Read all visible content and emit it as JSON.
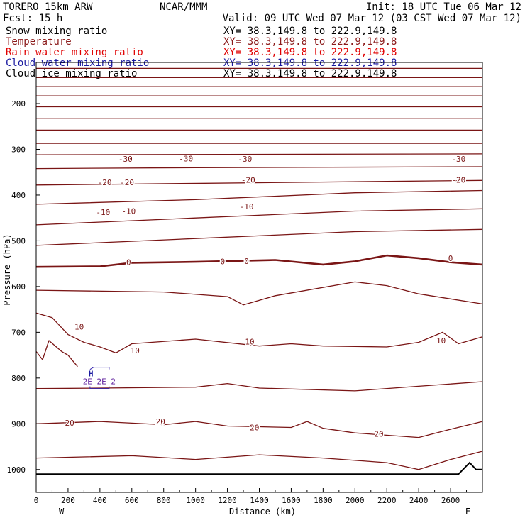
{
  "header": {
    "model_line": "TORERO  15km ARW",
    "forecast_line": "Fcst:   15 h",
    "org": "NCAR/MMM",
    "init": "Init: 18 UTC Tue 06 Mar 12",
    "valid": "Valid: 09 UTC Wed 07 Mar 12 (03 CST Wed 07 Mar 12)"
  },
  "fields": [
    {
      "name": "Snow mixing ratio",
      "xy": "XY=  38.3,149.8 to 222.9,149.8",
      "color": "#000000"
    },
    {
      "name": "Temperature",
      "xy": "XY=  38.3,149.8 to 222.9,149.8",
      "color": "#8b1a1a"
    },
    {
      "name": "Rain water mixing ratio",
      "xy": "XY=  38.3,149.8 to 222.9,149.8",
      "color": "#e00000"
    },
    {
      "name": "Cloud water mixing ratio",
      "xy": "XY=  38.3,149.8 to 222.9,149.8",
      "color": "#1a1aa0"
    },
    {
      "name": "Cloud ice mixing ratio",
      "xy": "XY=  38.3,149.8 to 222.9,149.8",
      "color": "#000000"
    }
  ],
  "chart_data": {
    "type": "line",
    "xlabel": "Distance (km)",
    "ylabel": "Pressure (hPa)",
    "xlim": [
      0,
      2800
    ],
    "ylim": [
      1050,
      110
    ],
    "x_ticks": [
      0,
      200,
      400,
      600,
      800,
      1000,
      1200,
      1400,
      1600,
      1800,
      2000,
      2200,
      2400,
      2600
    ],
    "y_ticks": [
      200,
      300,
      400,
      500,
      600,
      700,
      800,
      900,
      1000
    ],
    "x_end_labels": {
      "left": "W",
      "right": "E"
    },
    "isotherm_color": "#7a1515",
    "isotherms": [
      {
        "points": [
          [
            0,
            123
          ],
          [
            2800,
            123
          ]
        ]
      },
      {
        "points": [
          [
            0,
            143
          ],
          [
            2800,
            143
          ]
        ]
      },
      {
        "points": [
          [
            0,
            163
          ],
          [
            2800,
            163
          ]
        ]
      },
      {
        "points": [
          [
            0,
            183
          ],
          [
            2800,
            183
          ]
        ]
      },
      {
        "points": [
          [
            0,
            207
          ],
          [
            2800,
            207
          ]
        ]
      },
      {
        "points": [
          [
            0,
            232
          ],
          [
            2800,
            232
          ]
        ]
      },
      {
        "points": [
          [
            0,
            258
          ],
          [
            2800,
            258
          ]
        ]
      },
      {
        "points": [
          [
            0,
            287
          ],
          [
            2800,
            287
          ]
        ]
      },
      {
        "points": [
          [
            0,
            312
          ],
          [
            2800,
            310
          ]
        ]
      },
      {
        "points": [
          [
            0,
            342
          ],
          [
            1000,
            340
          ],
          [
            2800,
            338
          ]
        ]
      },
      {
        "points": [
          [
            0,
            378
          ],
          [
            2800,
            368
          ]
        ]
      },
      {
        "points": [
          [
            0,
            420
          ],
          [
            1000,
            410
          ],
          [
            2000,
            395
          ],
          [
            2800,
            390
          ]
        ]
      },
      {
        "points": [
          [
            0,
            465
          ],
          [
            1000,
            450
          ],
          [
            2000,
            435
          ],
          [
            2800,
            430
          ]
        ]
      },
      {
        "points": [
          [
            0,
            510
          ],
          [
            1000,
            495
          ],
          [
            2000,
            480
          ],
          [
            2800,
            475
          ]
        ]
      },
      {
        "points": [
          [
            0,
            557
          ],
          [
            400,
            556
          ],
          [
            600,
            548
          ],
          [
            1000,
            546
          ],
          [
            1500,
            542
          ],
          [
            1800,
            552
          ],
          [
            2000,
            545
          ],
          [
            2200,
            532
          ],
          [
            2400,
            538
          ],
          [
            2600,
            547
          ],
          [
            2800,
            552
          ]
        ],
        "bold": true
      },
      {
        "points": [
          [
            0,
            608
          ],
          [
            800,
            612
          ],
          [
            1200,
            622
          ],
          [
            1300,
            640
          ],
          [
            1500,
            620
          ],
          [
            2000,
            590
          ],
          [
            2200,
            598
          ],
          [
            2400,
            616
          ],
          [
            2800,
            638
          ]
        ]
      },
      {
        "points": [
          [
            0,
            658
          ],
          [
            100,
            668
          ],
          [
            200,
            705
          ],
          [
            300,
            722
          ],
          [
            400,
            732
          ],
          [
            500,
            745
          ],
          [
            600,
            725
          ],
          [
            1000,
            715
          ],
          [
            1400,
            730
          ],
          [
            1600,
            725
          ],
          [
            1800,
            730
          ],
          [
            2200,
            732
          ],
          [
            2400,
            722
          ],
          [
            2550,
            700
          ],
          [
            2650,
            725
          ],
          [
            2800,
            710
          ]
        ]
      },
      {
        "points": [
          [
            0,
            742
          ],
          [
            40,
            760
          ],
          [
            80,
            718
          ],
          [
            120,
            730
          ],
          [
            160,
            742
          ],
          [
            200,
            750
          ],
          [
            260,
            775
          ]
        ]
      },
      {
        "points": [
          [
            0,
            823
          ],
          [
            400,
            822
          ],
          [
            1000,
            820
          ],
          [
            1200,
            812
          ],
          [
            1400,
            822
          ],
          [
            2000,
            828
          ],
          [
            2400,
            818
          ],
          [
            2800,
            808
          ]
        ]
      },
      {
        "points": [
          [
            0,
            900
          ],
          [
            400,
            895
          ],
          [
            800,
            902
          ],
          [
            1000,
            895
          ],
          [
            1200,
            905
          ],
          [
            1600,
            908
          ],
          [
            1700,
            895
          ],
          [
            1800,
            910
          ],
          [
            2000,
            920
          ],
          [
            2400,
            930
          ],
          [
            2600,
            912
          ],
          [
            2800,
            895
          ]
        ]
      },
      {
        "points": [
          [
            0,
            975
          ],
          [
            600,
            970
          ],
          [
            1000,
            978
          ],
          [
            1400,
            968
          ],
          [
            1800,
            975
          ],
          [
            2200,
            985
          ],
          [
            2400,
            1000
          ],
          [
            2600,
            978
          ],
          [
            2800,
            960
          ]
        ]
      }
    ],
    "isotherm_labels": [
      {
        "text": "-30",
        "x": 560,
        "y": 321
      },
      {
        "text": "-30",
        "x": 940,
        "y": 320
      },
      {
        "text": "-30",
        "x": 1310,
        "y": 321
      },
      {
        "text": "-30",
        "x": 2650,
        "y": 321
      },
      {
        "text": "-20",
        "x": 430,
        "y": 372
      },
      {
        "text": "-20",
        "x": 570,
        "y": 372
      },
      {
        "text": "-20",
        "x": 1330,
        "y": 367
      },
      {
        "text": "-20",
        "x": 2650,
        "y": 367
      },
      {
        "text": "-10",
        "x": 420,
        "y": 437
      },
      {
        "text": "-10",
        "x": 580,
        "y": 435
      },
      {
        "text": "-10",
        "x": 1320,
        "y": 425
      },
      {
        "text": "0",
        "x": 580,
        "y": 547
      },
      {
        "text": "0",
        "x": 1170,
        "y": 545
      },
      {
        "text": "0",
        "x": 1320,
        "y": 544
      },
      {
        "text": "0",
        "x": 2600,
        "y": 538
      },
      {
        "text": "10",
        "x": 270,
        "y": 688
      },
      {
        "text": "10",
        "x": 620,
        "y": 740
      },
      {
        "text": "10",
        "x": 1340,
        "y": 720
      },
      {
        "text": "10",
        "x": 2540,
        "y": 718
      },
      {
        "text": "20",
        "x": 210,
        "y": 898
      },
      {
        "text": "20",
        "x": 780,
        "y": 895
      },
      {
        "text": "20",
        "x": 1370,
        "y": 908
      },
      {
        "text": "20",
        "x": 2150,
        "y": 922
      }
    ],
    "terrain": {
      "color": "#000000",
      "points": [
        [
          0,
          1010
        ],
        [
          2650,
          1010
        ],
        [
          2720,
          985
        ],
        [
          2760,
          1000
        ],
        [
          2800,
          1000
        ]
      ]
    },
    "pressure_center": {
      "label": "H",
      "x": 360,
      "y": 778,
      "value_label": "2E-2E-2",
      "color": "#5a1a9a"
    }
  }
}
